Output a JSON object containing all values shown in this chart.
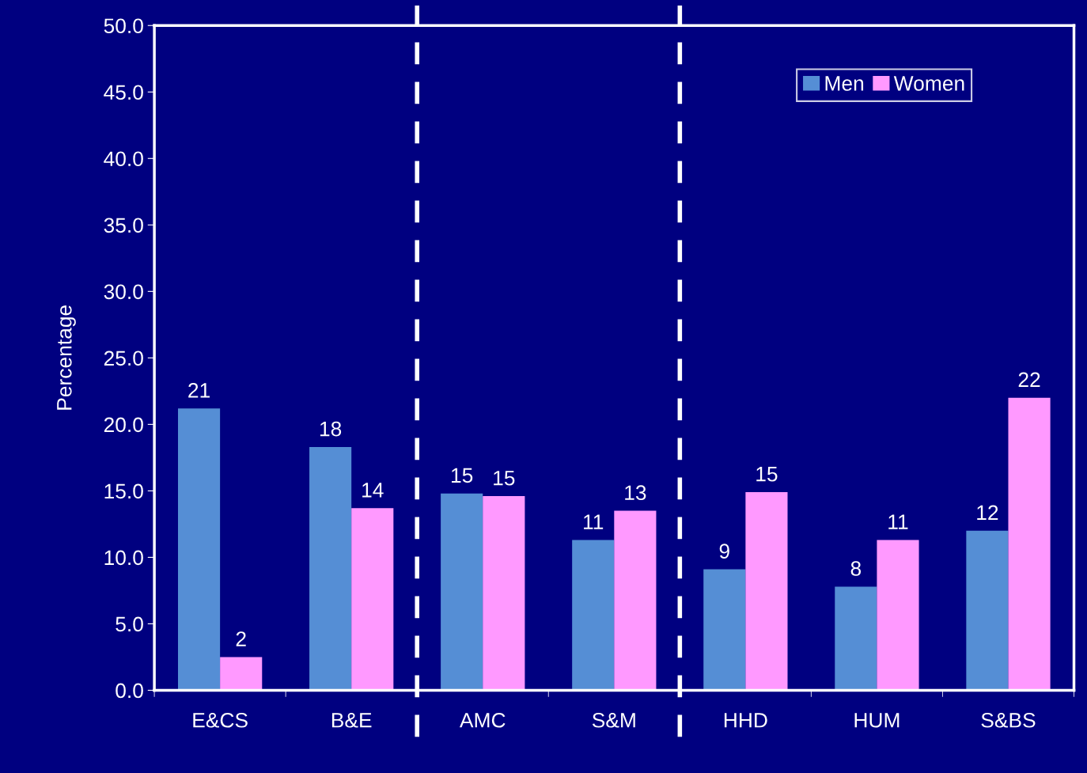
{
  "chart_data": {
    "type": "bar",
    "ylabel": "Percentage",
    "categories": [
      "E&CS",
      "B&E",
      "AMC",
      "S&M",
      "HHD",
      "HUM",
      "S&BS"
    ],
    "series": [
      {
        "name": "Men",
        "color": "#558ed5",
        "values": [
          21.2,
          18.3,
          14.8,
          11.3,
          9.1,
          7.8,
          12.0
        ],
        "value_labels": [
          "21",
          "18",
          "15",
          "11",
          "9",
          "8",
          "12"
        ]
      },
      {
        "name": "Women",
        "color": "#ff99ff",
        "values": [
          2.5,
          13.7,
          14.6,
          13.5,
          14.9,
          11.3,
          22.0
        ],
        "value_labels": [
          "2",
          "14",
          "15",
          "13",
          "15",
          "11",
          "22"
        ]
      }
    ],
    "ylim": [
      0,
      50
    ],
    "yticks": [
      {
        "value": 0,
        "label": "0.0"
      },
      {
        "value": 5,
        "label": "5.0"
      },
      {
        "value": 10,
        "label": "10.0"
      },
      {
        "value": 15,
        "label": "15.0"
      },
      {
        "value": 20,
        "label": "20.0"
      },
      {
        "value": 25,
        "label": "25.0"
      },
      {
        "value": 30,
        "label": "30.0"
      },
      {
        "value": 35,
        "label": "35.0"
      },
      {
        "value": 40,
        "label": "40.0"
      },
      {
        "value": 45,
        "label": "45.0"
      },
      {
        "value": 50,
        "label": "50.0"
      }
    ],
    "legend": "top right",
    "grid": false
  }
}
